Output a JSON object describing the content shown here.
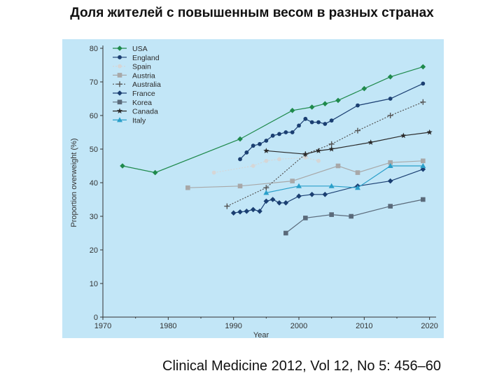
{
  "title": "Доля жителей с повышенным весом в разных странах",
  "citation": "Clinical Medicine 2012, Vol 12, No 5: 456–60",
  "colors": {
    "panel_background": "#c2e6f7",
    "axis": "#333333"
  },
  "chart_data": {
    "type": "line",
    "xlabel": "Year",
    "ylabel": "Proportion overweight (%)",
    "xlim": [
      1970,
      2021
    ],
    "ylim": [
      0,
      80
    ],
    "xticks": [
      1970,
      1980,
      1990,
      2000,
      2010,
      2020
    ],
    "yticks": [
      0,
      10,
      20,
      30,
      40,
      50,
      60,
      70,
      80
    ],
    "grid": false,
    "legend_position": "top-left",
    "series": [
      {
        "name": "USA",
        "color": "#1f8a4c",
        "marker": "diamond",
        "dash": "solid",
        "x": [
          1973,
          1978,
          1991,
          1999,
          2002,
          2004,
          2006,
          2010,
          2014,
          2019
        ],
        "y": [
          45,
          43,
          53,
          61.5,
          62.5,
          63.5,
          64.5,
          68,
          71.5,
          74.5
        ]
      },
      {
        "name": "England",
        "color": "#1b3f72",
        "marker": "circle",
        "dash": "solid",
        "x": [
          1991,
          1992,
          1993,
          1994,
          1995,
          1996,
          1997,
          1998,
          1999,
          2000,
          2001,
          2002,
          2003,
          2004,
          2005,
          2009,
          2014,
          2019
        ],
        "y": [
          47,
          49,
          51,
          51.5,
          52.5,
          54,
          54.5,
          55,
          55,
          57,
          59,
          58,
          58,
          57.5,
          58.5,
          63,
          65,
          69.5
        ]
      },
      {
        "name": "Spain",
        "color": "#d6d6d6",
        "marker": "circle",
        "dash": "dotted",
        "x": [
          1987,
          1993,
          1995,
          1997,
          2001,
          2003
        ],
        "y": [
          43,
          45,
          46.5,
          47,
          47.5,
          46.5
        ]
      },
      {
        "name": "Austria",
        "color": "#a8a8a8",
        "marker": "square",
        "dash": "solid",
        "x": [
          1983,
          1991,
          1999,
          2006,
          2009,
          2014,
          2019
        ],
        "y": [
          38.5,
          39,
          40.5,
          45,
          43,
          46,
          46.5
        ]
      },
      {
        "name": "Australia",
        "color": "#545454",
        "marker": "plus",
        "dash": "dotted",
        "x": [
          1989,
          1995,
          2001,
          2005,
          2009,
          2014,
          2019
        ],
        "y": [
          33,
          38.5,
          48.5,
          51.5,
          55.5,
          60,
          64
        ]
      },
      {
        "name": "France",
        "color": "#1b3f72",
        "marker": "diamond",
        "dash": "solid",
        "x": [
          1990,
          1991,
          1992,
          1993,
          1994,
          1995,
          1996,
          1997,
          1998,
          2000,
          2002,
          2004,
          2009,
          2014,
          2019
        ],
        "y": [
          31,
          31.3,
          31.5,
          32,
          31.5,
          34.5,
          35,
          34,
          34,
          36,
          36.5,
          36.5,
          39,
          40.5,
          44
        ]
      },
      {
        "name": "Korea",
        "color": "#5a6a7a",
        "marker": "square",
        "dash": "solid",
        "x": [
          1998,
          2001,
          2005,
          2008,
          2014,
          2019
        ],
        "y": [
          25,
          29.5,
          30.5,
          30,
          33,
          35
        ]
      },
      {
        "name": "Canada",
        "color": "#2a2a2a",
        "marker": "star",
        "dash": "solid",
        "x": [
          1995,
          2001,
          2003,
          2005,
          2011,
          2016,
          2020
        ],
        "y": [
          49.5,
          48.5,
          49.5,
          50,
          52,
          54,
          55
        ]
      },
      {
        "name": "Italy",
        "color": "#2a9fc9",
        "marker": "triangle",
        "dash": "solid",
        "x": [
          1995,
          2000,
          2005,
          2009,
          2014,
          2019
        ],
        "y": [
          37,
          39,
          39,
          38.5,
          45,
          45
        ]
      }
    ]
  }
}
